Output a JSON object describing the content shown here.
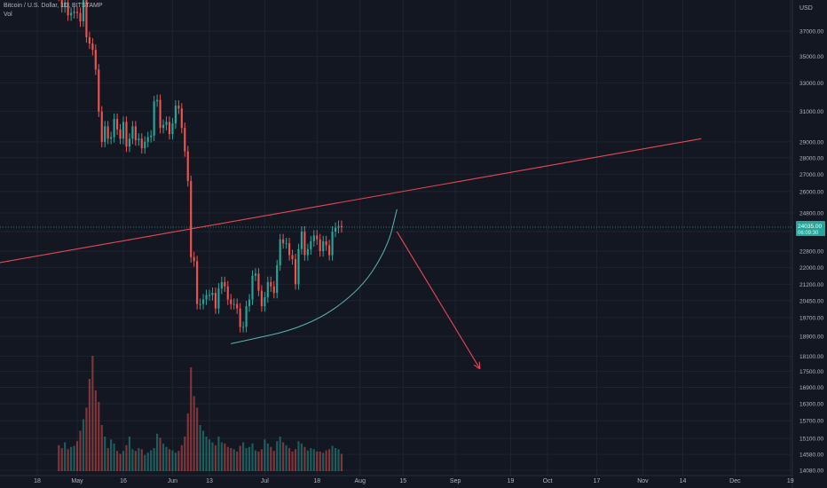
{
  "header": {
    "symbol_line": "Bitcoin / U.S. Dollar, 1D, BITSTAMP",
    "volume_label": "Vol"
  },
  "price_scale": {
    "currency": "USD",
    "current_price": "24035.00",
    "countdown": "06:09:30"
  },
  "colors": {
    "background": "#131722",
    "up": "#26a69a",
    "down": "#ef5350",
    "trendline": "#e84855",
    "curve": "#5fb3b3",
    "price_line": "#26a69a",
    "grid": "#1f2330",
    "text": "#b2b5be"
  },
  "drawings": {
    "resistance_trendline": {
      "from": [
        "2022-03-01",
        21300
      ],
      "to": [
        "2022-11-20",
        29200
      ]
    },
    "support_curve": [
      [
        "2022-06-20",
        18600
      ],
      [
        "2022-07-15",
        19300
      ],
      [
        "2022-08-01",
        20900
      ],
      [
        "2022-08-10",
        23000
      ],
      [
        "2022-08-13",
        25000
      ]
    ],
    "projection_arrow": {
      "from": [
        "2022-08-13",
        23800
      ],
      "to": [
        "2022-09-09",
        17600
      ]
    }
  },
  "chart_data": {
    "type": "candlestick",
    "title": "Bitcoin / U.S. Dollar, 1D, BITSTAMP",
    "y_scale": "log",
    "y_axis_label": "USD",
    "y_ticks": [
      37000,
      35000,
      33000,
      31000,
      29000,
      28000,
      27000,
      26000,
      24800,
      23800,
      22800,
      22000,
      21200,
      20450,
      19700,
      18900,
      18100,
      17500,
      16900,
      16300,
      15700,
      15100,
      14580,
      14080
    ],
    "ylim": [
      13950,
      39500
    ],
    "x_ticks": [
      {
        "label": "18",
        "date": "2022-04-18"
      },
      {
        "label": "May",
        "date": "2022-05-01"
      },
      {
        "label": "16",
        "date": "2022-05-16"
      },
      {
        "label": "Jun",
        "date": "2022-06-01"
      },
      {
        "label": "13",
        "date": "2022-06-13"
      },
      {
        "label": "Jul",
        "date": "2022-07-01"
      },
      {
        "label": "18",
        "date": "2022-07-18"
      },
      {
        "label": "Aug",
        "date": "2022-08-01"
      },
      {
        "label": "15",
        "date": "2022-08-15"
      },
      {
        "label": "Sep",
        "date": "2022-09-01"
      },
      {
        "label": "19",
        "date": "2022-09-19"
      },
      {
        "label": "Oct",
        "date": "2022-10-01"
      },
      {
        "label": "17",
        "date": "2022-10-17"
      },
      {
        "label": "Nov",
        "date": "2022-11-01"
      },
      {
        "label": "14",
        "date": "2022-11-14"
      },
      {
        "label": "Dec",
        "date": "2022-12-01"
      },
      {
        "label": "19",
        "date": "2022-12-19"
      }
    ],
    "candles_start_date": "2022-04-25",
    "close_prices": [
      40000,
      39000,
      39400,
      38300,
      38500,
      38600,
      38500,
      37800,
      39600,
      36500,
      36000,
      35500,
      34000,
      31000,
      29000,
      30000,
      29200,
      29300,
      30500,
      29800,
      29200,
      30300,
      28700,
      29200,
      30000,
      29100,
      29200,
      28600,
      29000,
      29300,
      29400,
      31700,
      31800,
      29900,
      30100,
      30300,
      29500,
      30200,
      31400,
      31200,
      29900,
      28400,
      26600,
      22500,
      22300,
      20300,
      20300,
      20500,
      20700,
      20700,
      20800,
      20100,
      21000,
      21300,
      21100,
      20500,
      20300,
      20300,
      20100,
      19300,
      19300,
      20200,
      20500,
      21600,
      21700,
      20900,
      20200,
      20600,
      21300,
      21100,
      20800,
      22100,
      23400,
      23200,
      23200,
      22600,
      22400,
      21200,
      22900,
      23800,
      22600,
      22900,
      23300,
      23600,
      23400,
      22800,
      23300,
      23100,
      22600,
      23800,
      24000,
      24100,
      24035
    ],
    "volume": [
      45,
      40,
      50,
      38,
      42,
      44,
      52,
      70,
      90,
      110,
      160,
      200,
      140,
      120,
      80,
      60,
      40,
      55,
      48,
      35,
      30,
      35,
      45,
      60,
      38,
      35,
      40,
      38,
      28,
      32,
      36,
      40,
      65,
      58,
      48,
      42,
      38,
      36,
      32,
      35,
      45,
      60,
      100,
      180,
      130,
      110,
      80,
      70,
      60,
      55,
      50,
      45,
      60,
      50,
      48,
      42,
      40,
      38,
      34,
      44,
      50,
      40,
      42,
      48,
      36,
      34,
      38,
      55,
      48,
      42,
      35,
      52,
      60,
      50,
      45,
      40,
      34,
      38,
      52,
      48,
      42,
      36,
      40,
      38,
      34,
      34,
      32,
      36,
      38,
      44,
      40,
      38,
      30
    ]
  }
}
